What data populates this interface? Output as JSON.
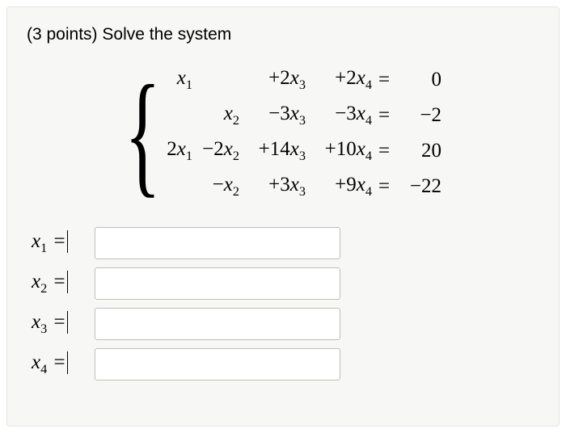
{
  "background_color": "#ffffff",
  "panel": {
    "background_color": "#f7f7f5",
    "border_color": "#e5e5e3"
  },
  "prompt": {
    "points_text": "(3 points)",
    "instruction": "Solve the system",
    "fontsize": 21,
    "color": "#000000"
  },
  "system": {
    "font_family": "Times New Roman, serif",
    "fontsize": 25,
    "variables": [
      "x_1",
      "x_2",
      "x_3",
      "x_4"
    ],
    "equations": [
      {
        "coeffs": [
          1,
          0,
          2,
          2
        ],
        "rhs": 0
      },
      {
        "coeffs": [
          0,
          1,
          -3,
          -3
        ],
        "rhs": -2
      },
      {
        "coeffs": [
          2,
          -2,
          14,
          10
        ],
        "rhs": 20
      },
      {
        "coeffs": [
          0,
          -1,
          3,
          9
        ],
        "rhs": -22
      }
    ],
    "display_cells": {
      "row1": {
        "c1": "x₁",
        "c2": "",
        "c3": "+2x₃",
        "c4": "+2x₄",
        "eq": "=",
        "rhs": "0"
      },
      "row2": {
        "c1": "",
        "c2": "x₂",
        "c3": "−3x₃",
        "c4": "−3x₄",
        "eq": "=",
        "rhs": "−2"
      },
      "row3": {
        "c1": "2x₁",
        "c2": "−2x₂",
        "c3": "+14x₃",
        "c4": "+10x₄",
        "eq": "=",
        "rhs": "20"
      },
      "row4": {
        "c1": "",
        "c2": "−x₂",
        "c3": "+3x₃",
        "c4": "+9x₄",
        "eq": "=",
        "rhs": "−22"
      }
    },
    "brace_glyph": "{"
  },
  "answers": {
    "input_border_color": "#bfbfbe",
    "input_background": "#ffffff",
    "input_width": 304,
    "input_height": 40,
    "fields": [
      {
        "label_var": "x",
        "label_sub": "1",
        "eq": "=",
        "value": ""
      },
      {
        "label_var": "x",
        "label_sub": "2",
        "eq": "=",
        "value": ""
      },
      {
        "label_var": "x",
        "label_sub": "3",
        "eq": "=",
        "value": ""
      },
      {
        "label_var": "x",
        "label_sub": "4",
        "eq": "=",
        "value": ""
      }
    ]
  }
}
